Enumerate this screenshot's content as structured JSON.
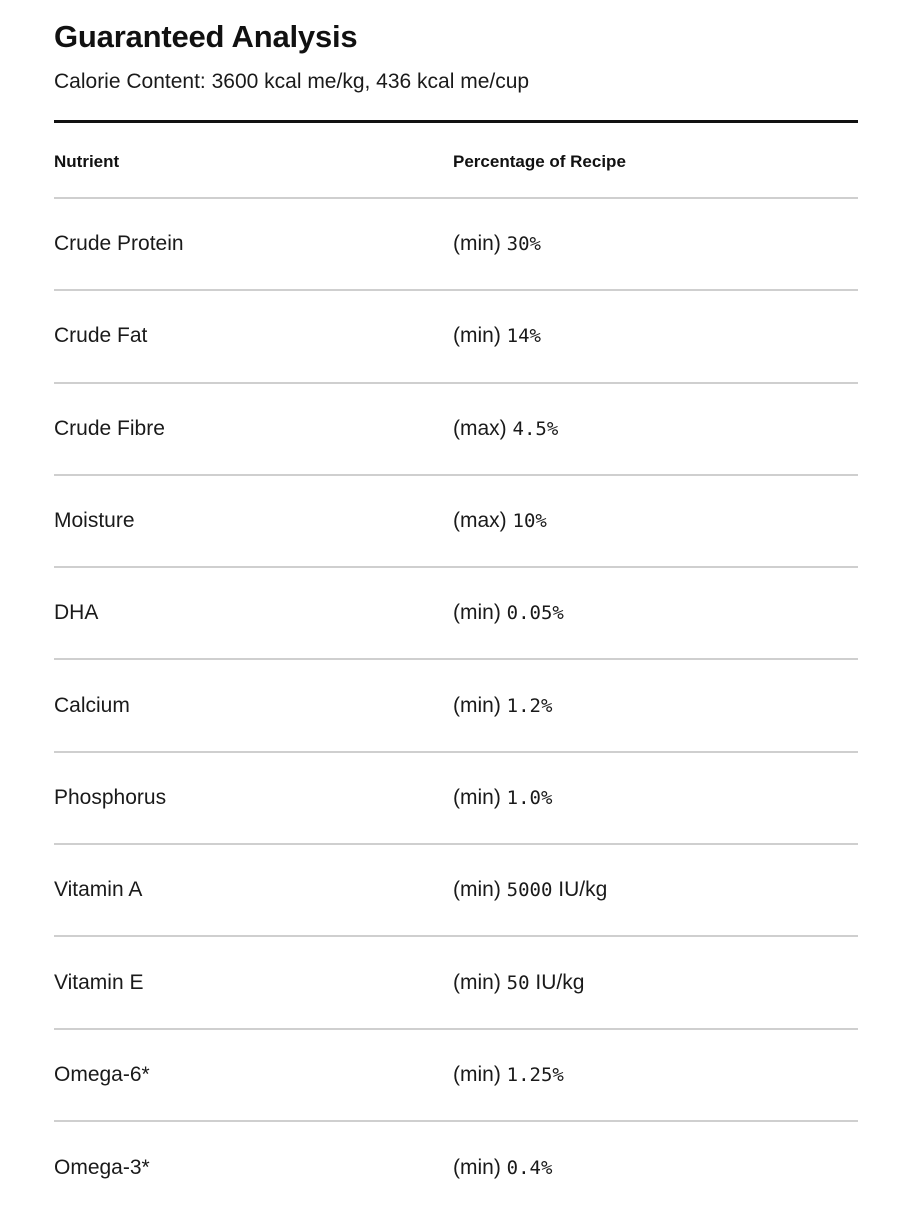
{
  "header": {
    "title": "Guaranteed Analysis",
    "subtitle": "Calorie Content: 3600 kcal me/kg, 436 kcal me/cup"
  },
  "table": {
    "columns": [
      "Nutrient",
      "Percentage of Recipe"
    ],
    "rows": [
      {
        "nutrient": "Crude Protein",
        "qualifier": "(min)",
        "amount": "30%",
        "unit": ""
      },
      {
        "nutrient": "Crude Fat",
        "qualifier": "(min)",
        "amount": "14%",
        "unit": ""
      },
      {
        "nutrient": "Crude Fibre",
        "qualifier": "(max)",
        "amount": "4.5%",
        "unit": ""
      },
      {
        "nutrient": "Moisture",
        "qualifier": "(max)",
        "amount": "10%",
        "unit": ""
      },
      {
        "nutrient": "DHA",
        "qualifier": "(min)",
        "amount": "0.05%",
        "unit": ""
      },
      {
        "nutrient": "Calcium",
        "qualifier": "(min)",
        "amount": "1.2%",
        "unit": ""
      },
      {
        "nutrient": "Phosphorus",
        "qualifier": "(min)",
        "amount": "1.0%",
        "unit": ""
      },
      {
        "nutrient": "Vitamin A",
        "qualifier": "(min)",
        "amount": "5000",
        "unit": "IU/kg"
      },
      {
        "nutrient": "Vitamin E",
        "qualifier": "(min)",
        "amount": "50",
        "unit": "IU/kg"
      },
      {
        "nutrient": "Omega-6*",
        "qualifier": "(min)",
        "amount": "1.25%",
        "unit": ""
      },
      {
        "nutrient": "Omega-3*",
        "qualifier": "(min)",
        "amount": "0.4%",
        "unit": ""
      }
    ]
  },
  "colors": {
    "text": "#111111",
    "rule": "#111111",
    "divider": "#cfcfcf",
    "background": "#ffffff"
  }
}
